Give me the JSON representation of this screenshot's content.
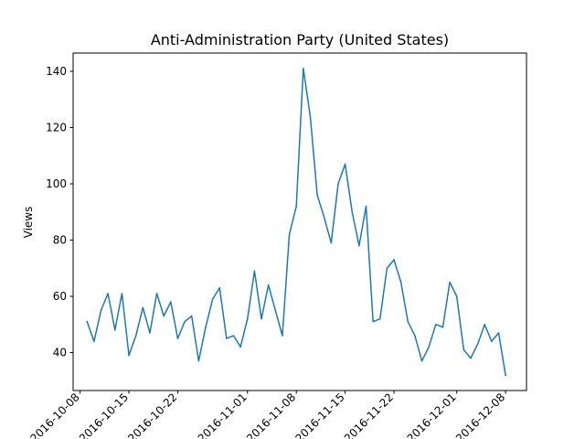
{
  "chart_data": {
    "type": "line",
    "title": "Anti-Administration Party (United States)",
    "xlabel": "",
    "ylabel": "Views",
    "x_tick_labels": [
      "2016-10-08",
      "2016-10-15",
      "2016-10-22",
      "2016-11-01",
      "2016-11-08",
      "2016-11-15",
      "2016-11-22",
      "2016-12-01",
      "2016-12-08"
    ],
    "y_ticks": [
      40,
      60,
      80,
      100,
      120,
      140
    ],
    "ylim": [
      26.5,
      146.5
    ],
    "xlim": [
      "2016-10-07",
      "2016-12-11"
    ],
    "grid": false,
    "color": "#1f77b4",
    "series": [
      {
        "x": [
          "2016-10-09",
          "2016-10-10",
          "2016-10-11",
          "2016-10-12",
          "2016-10-13",
          "2016-10-14",
          "2016-10-15",
          "2016-10-16",
          "2016-10-17",
          "2016-10-18",
          "2016-10-19",
          "2016-10-20",
          "2016-10-21",
          "2016-10-22",
          "2016-10-23",
          "2016-10-24",
          "2016-10-25",
          "2016-10-26",
          "2016-10-27",
          "2016-10-28",
          "2016-10-29",
          "2016-10-30",
          "2016-10-31",
          "2016-11-01",
          "2016-11-02",
          "2016-11-03",
          "2016-11-04",
          "2016-11-05",
          "2016-11-06",
          "2016-11-07",
          "2016-11-08",
          "2016-11-09",
          "2016-11-10",
          "2016-11-11",
          "2016-11-12",
          "2016-11-13",
          "2016-11-14",
          "2016-11-15",
          "2016-11-16",
          "2016-11-17",
          "2016-11-18",
          "2016-11-19",
          "2016-11-20",
          "2016-11-21",
          "2016-11-22",
          "2016-11-23",
          "2016-11-24",
          "2016-11-25",
          "2016-11-26",
          "2016-11-27",
          "2016-11-28",
          "2016-11-29",
          "2016-11-30",
          "2016-12-01",
          "2016-12-02",
          "2016-12-03",
          "2016-12-04",
          "2016-12-05",
          "2016-12-06",
          "2016-12-07",
          "2016-12-08"
        ],
        "values": [
          51,
          44,
          55,
          61,
          48,
          61,
          39,
          46,
          56,
          47,
          61,
          53,
          58,
          45,
          51,
          53,
          37,
          49,
          59,
          63,
          45,
          46,
          42,
          52,
          69,
          52,
          64,
          55,
          46,
          82,
          92,
          141,
          124,
          96,
          88,
          79,
          100,
          107,
          90,
          78,
          92,
          51,
          52,
          70,
          73,
          65,
          51,
          46,
          37,
          42,
          50,
          49,
          65,
          60,
          41,
          38,
          43,
          50,
          44,
          47,
          32
        ]
      }
    ]
  }
}
